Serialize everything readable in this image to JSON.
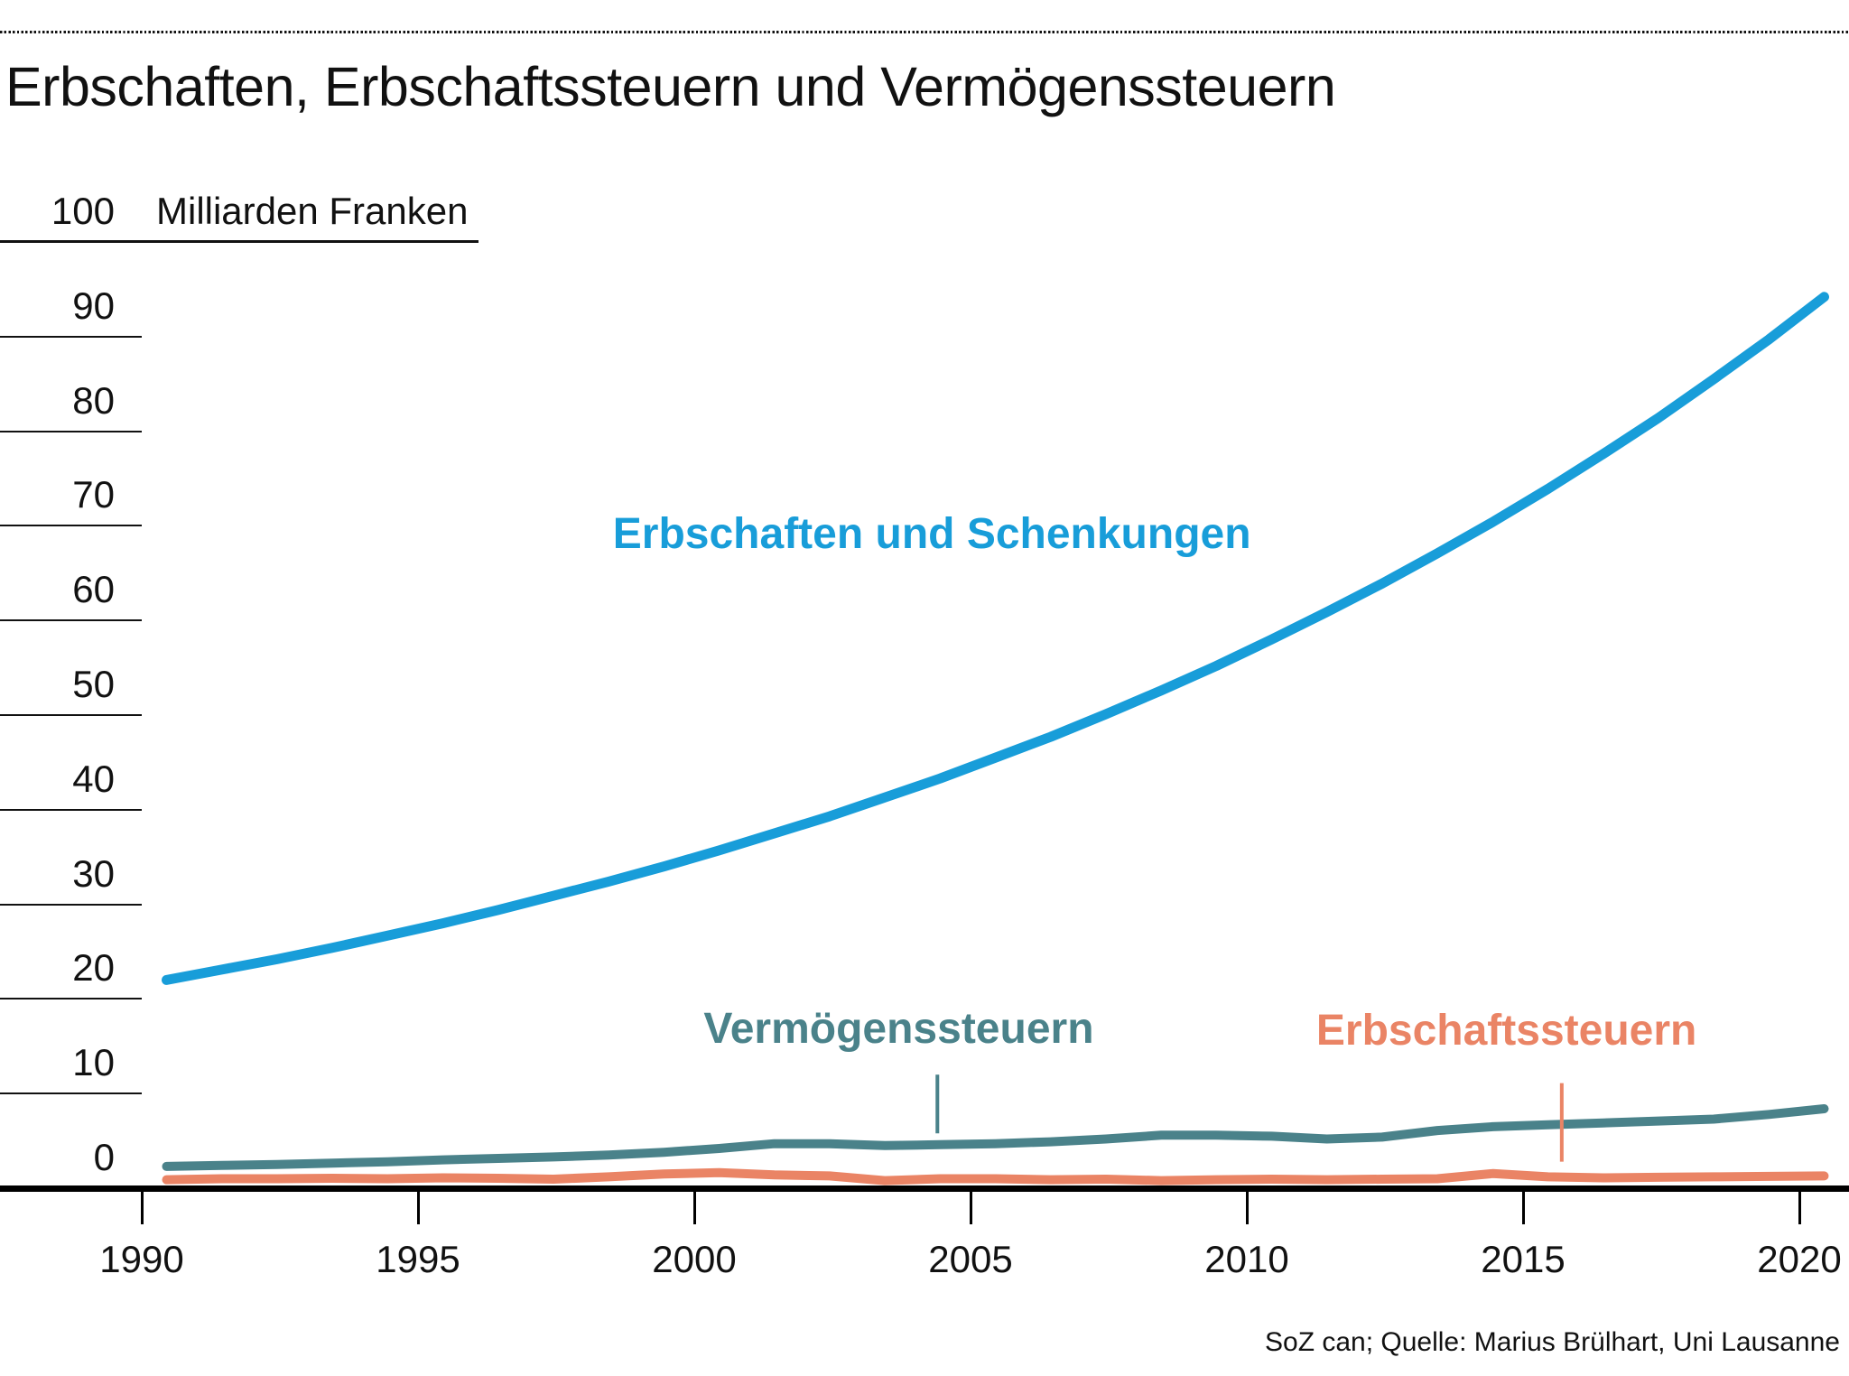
{
  "page": {
    "title": "Erbschaften, Erbschaftssteuern und Vermögenssteuern",
    "source": "SoZ can; Quelle: Marius Brülhart, Uni Lausanne"
  },
  "axes": {
    "y_top_value": "100",
    "y_unit": "Milliarden Franken",
    "y_ticks": [
      90,
      80,
      70,
      60,
      50,
      40,
      30,
      20,
      10,
      0
    ],
    "x_ticks": [
      1990,
      1995,
      2000,
      2005,
      2010,
      2015,
      2020
    ]
  },
  "chart_data": {
    "type": "line",
    "title": "Erbschaften, Erbschaftssteuern und Vermögenssteuern",
    "ylabel": "Milliarden Franken",
    "xlabel": "",
    "ylim": [
      0,
      100
    ],
    "xlim": [
      1990,
      2020
    ],
    "grid": "short-left-stub-gridlines",
    "legend_position": "inline-annotations",
    "x": [
      1990,
      1991,
      1992,
      1993,
      1994,
      1995,
      1996,
      1997,
      1998,
      1999,
      2000,
      2001,
      2002,
      2003,
      2004,
      2005,
      2006,
      2007,
      2008,
      2009,
      2010,
      2011,
      2012,
      2013,
      2014,
      2015,
      2016,
      2017,
      2018,
      2019,
      2020
    ],
    "series": [
      {
        "name": "Erbschaften und Schenkungen",
        "color": "#189dd9",
        "stroke_width": 11,
        "values": [
          22.0,
          23.1,
          24.2,
          25.4,
          26.7,
          28.0,
          29.4,
          30.9,
          32.4,
          34.0,
          35.7,
          37.5,
          39.3,
          41.3,
          43.3,
          45.5,
          47.7,
          50.1,
          52.6,
          55.2,
          58.0,
          60.9,
          63.9,
          67.1,
          70.4,
          73.9,
          77.6,
          81.4,
          85.5,
          89.7,
          94.2
        ]
      },
      {
        "name": "Vermögenssteuern",
        "color": "#4a828a",
        "stroke_width": 10,
        "values": [
          2.3,
          2.4,
          2.5,
          2.65,
          2.8,
          3.0,
          3.15,
          3.3,
          3.5,
          3.8,
          4.2,
          4.7,
          4.7,
          4.5,
          4.6,
          4.7,
          4.9,
          5.2,
          5.6,
          5.6,
          5.5,
          5.2,
          5.4,
          6.1,
          6.5,
          6.7,
          6.9,
          7.1,
          7.3,
          7.8,
          8.4
        ]
      },
      {
        "name": "Erbschaftssteuern",
        "color": "#ea8465",
        "stroke_width": 10,
        "values": [
          0.9,
          1.0,
          1.0,
          1.05,
          1.0,
          1.1,
          1.05,
          0.95,
          1.2,
          1.5,
          1.65,
          1.4,
          1.3,
          0.8,
          1.0,
          1.0,
          0.9,
          0.95,
          0.8,
          0.9,
          0.95,
          0.9,
          0.95,
          1.0,
          1.55,
          1.2,
          1.1,
          1.15,
          1.2,
          1.25,
          1.3
        ]
      }
    ],
    "annotations": [
      {
        "series": 0,
        "text": "Erbschaften und Schenkungen",
        "x": 2004.3,
        "y": 69.1
      },
      {
        "series": 1,
        "text": "Vermögenssteuern",
        "x": 2003.7,
        "y": 16.8,
        "callout": {
          "x": 2004.4,
          "y1": 12.0,
          "y2": 5.8
        }
      },
      {
        "series": 2,
        "text": "Erbschaftssteuern",
        "x": 2014.7,
        "y": 16.6,
        "callout": {
          "x": 2015.7,
          "y1": 11.1,
          "y2": 2.8
        }
      }
    ]
  }
}
